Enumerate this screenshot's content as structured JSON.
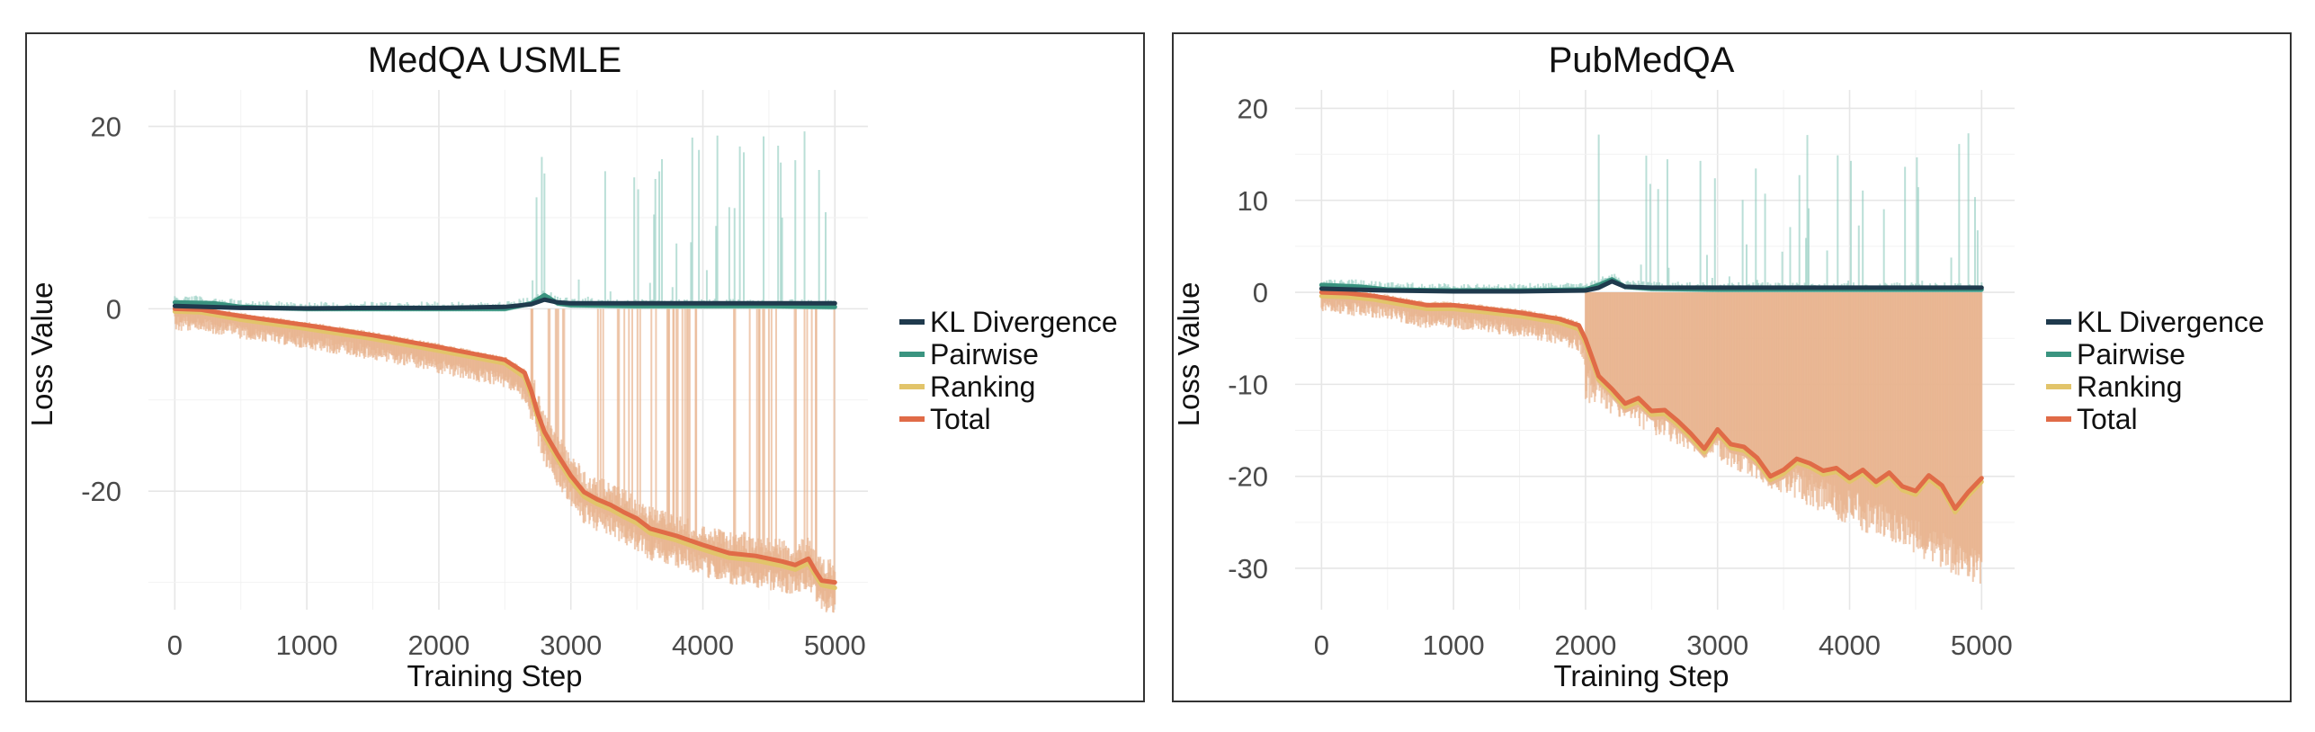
{
  "chart_data": [
    {
      "type": "line",
      "title": "MedQA USMLE",
      "xlabel": "Training Step",
      "ylabel": "Loss Value",
      "xlim": [
        -200,
        5250
      ],
      "ylim": [
        -33,
        24
      ],
      "xticks": [
        0,
        1000,
        2000,
        3000,
        4000,
        5000
      ],
      "xtick_labels": [
        "0",
        "1000",
        "2000",
        "3000",
        "4000",
        "5000"
      ],
      "yticks": [
        -20,
        0,
        20
      ],
      "ytick_labels": [
        "-20",
        "0",
        "20"
      ],
      "grid": true,
      "legend_position": "right",
      "legend": [
        "KL Divergence",
        "Pairwise",
        "Ranking",
        "Total"
      ],
      "series": [
        {
          "name": "KL Divergence",
          "color": "#1f3a4d",
          "x": [
            0,
            500,
            1000,
            1500,
            2000,
            2500,
            2700,
            2800,
            2900,
            3000,
            3500,
            4000,
            4500,
            5000
          ],
          "values": [
            0.3,
            0.1,
            0.05,
            0.1,
            0.1,
            0.2,
            0.5,
            1.0,
            0.7,
            0.6,
            0.6,
            0.6,
            0.6,
            0.6
          ]
        },
        {
          "name": "Pairwise",
          "color": "#3a9480",
          "x": [
            0,
            300,
            500,
            1000,
            1500,
            2000,
            2500,
            2700,
            2800,
            2900,
            3000,
            3500,
            4000,
            4500,
            5000
          ],
          "values": [
            0.7,
            0.6,
            0.2,
            0.0,
            0.0,
            0.0,
            0.0,
            0.6,
            1.5,
            0.6,
            0.4,
            0.3,
            0.3,
            0.3,
            0.2
          ]
        },
        {
          "name": "Ranking",
          "color": "#e2c46a",
          "x": [
            0,
            200,
            500,
            1000,
            1500,
            2000,
            2500,
            2650,
            2700,
            2750,
            2800,
            2900,
            3000,
            3100,
            3200,
            3300,
            3400,
            3500,
            3600,
            3800,
            4000,
            4200,
            4400,
            4600,
            4700,
            4800,
            4850,
            4900,
            5000
          ],
          "values": [
            -0.3,
            -0.4,
            -1.2,
            -2.2,
            -3.3,
            -4.6,
            -6.0,
            -7.5,
            -9.5,
            -12.0,
            -14.0,
            -16.5,
            -18.8,
            -20.6,
            -21.4,
            -22.0,
            -22.8,
            -23.5,
            -24.6,
            -25.4,
            -26.4,
            -27.3,
            -27.6,
            -28.2,
            -28.6,
            -27.9,
            -29.2,
            -30.3,
            -30.6
          ]
        },
        {
          "name": "Total",
          "color": "#e06b47",
          "x": [
            0,
            200,
            500,
            1000,
            1500,
            2000,
            2500,
            2650,
            2700,
            2750,
            2800,
            2900,
            3000,
            3100,
            3200,
            3300,
            3400,
            3500,
            3600,
            3800,
            4000,
            4200,
            4400,
            4600,
            4700,
            4800,
            4850,
            4900,
            5000
          ],
          "values": [
            0.0,
            -0.1,
            -0.8,
            -1.8,
            -2.9,
            -4.2,
            -5.6,
            -7.0,
            -9.0,
            -11.5,
            -13.5,
            -16.0,
            -18.3,
            -20.1,
            -20.9,
            -21.5,
            -22.3,
            -23.0,
            -24.1,
            -24.9,
            -25.9,
            -26.8,
            -27.1,
            -27.7,
            -28.1,
            -27.4,
            -28.7,
            -29.8,
            -30.0
          ]
        }
      ]
    },
    {
      "type": "line",
      "title": "PubMedQA",
      "xlabel": "Training Step",
      "ylabel": "Loss Value",
      "xlim": [
        -200,
        5250
      ],
      "ylim": [
        -34.5,
        22
      ],
      "xticks": [
        0,
        1000,
        2000,
        3000,
        4000,
        5000
      ],
      "xtick_labels": [
        "0",
        "1000",
        "2000",
        "3000",
        "4000",
        "5000"
      ],
      "yticks": [
        -30,
        -20,
        -10,
        0,
        10,
        20
      ],
      "ytick_labels": [
        "-30",
        "-20",
        "-10",
        "0",
        "10",
        "20"
      ],
      "grid": true,
      "legend_position": "right",
      "legend": [
        "KL Divergence",
        "Pairwise",
        "Ranking",
        "Total"
      ],
      "series": [
        {
          "name": "KL Divergence",
          "color": "#1f3a4d",
          "x": [
            0,
            500,
            1000,
            1500,
            2000,
            2100,
            2200,
            2300,
            2500,
            3000,
            3500,
            4000,
            4500,
            5000
          ],
          "values": [
            0.4,
            0.2,
            0.1,
            0.1,
            0.2,
            0.5,
            1.2,
            0.6,
            0.5,
            0.5,
            0.5,
            0.5,
            0.5,
            0.5
          ]
        },
        {
          "name": "Pairwise",
          "color": "#3a9480",
          "x": [
            0,
            300,
            500,
            1000,
            1500,
            2000,
            2100,
            2200,
            2300,
            2500,
            3000,
            3500,
            4000,
            4500,
            5000
          ],
          "values": [
            0.8,
            0.6,
            0.3,
            0.2,
            0.2,
            0.3,
            0.8,
            1.4,
            0.6,
            0.4,
            0.3,
            0.3,
            0.3,
            0.3,
            0.3
          ]
        },
        {
          "name": "Ranking",
          "color": "#e2c46a",
          "x": [
            0,
            200,
            400,
            600,
            800,
            1000,
            1200,
            1500,
            1800,
            1950,
            2000,
            2050,
            2100,
            2200,
            2300,
            2400,
            2500,
            2600,
            2700,
            2800,
            2900,
            3000,
            3100,
            3200,
            3300,
            3400,
            3500,
            3600,
            3700,
            3800,
            3900,
            4000,
            4100,
            4200,
            4300,
            4400,
            4500,
            4600,
            4700,
            4800,
            4900,
            5000
          ],
          "values": [
            -0.4,
            -0.5,
            -0.8,
            -1.3,
            -1.8,
            -1.8,
            -2.1,
            -2.6,
            -3.3,
            -4.0,
            -5.5,
            -7.5,
            -9.5,
            -10.9,
            -12.5,
            -11.9,
            -13.3,
            -13.2,
            -14.4,
            -15.8,
            -17.4,
            -15.3,
            -16.9,
            -17.2,
            -18.4,
            -20.4,
            -19.7,
            -18.5,
            -19.0,
            -19.8,
            -19.5,
            -20.6,
            -19.7,
            -21.0,
            -20.0,
            -21.5,
            -22.0,
            -20.3,
            -21.4,
            -23.9,
            -22.1,
            -20.6
          ]
        },
        {
          "name": "Total",
          "color": "#e06b47",
          "x": [
            0,
            200,
            400,
            600,
            800,
            1000,
            1200,
            1500,
            1800,
            1950,
            2000,
            2050,
            2100,
            2200,
            2300,
            2400,
            2500,
            2600,
            2700,
            2800,
            2900,
            3000,
            3100,
            3200,
            3300,
            3400,
            3500,
            3600,
            3700,
            3800,
            3900,
            4000,
            4100,
            4200,
            4300,
            4400,
            4500,
            4600,
            4700,
            4800,
            4900,
            5000
          ],
          "values": [
            0.0,
            -0.1,
            -0.4,
            -0.9,
            -1.4,
            -1.4,
            -1.7,
            -2.2,
            -2.9,
            -3.6,
            -5.1,
            -7.1,
            -9.1,
            -10.5,
            -12.1,
            -11.5,
            -12.9,
            -12.8,
            -14.0,
            -15.4,
            -17.0,
            -14.9,
            -16.5,
            -16.8,
            -18.0,
            -20.0,
            -19.3,
            -18.1,
            -18.6,
            -19.4,
            -19.1,
            -20.2,
            -19.3,
            -20.6,
            -19.6,
            -21.1,
            -21.6,
            -19.9,
            -21.0,
            -23.5,
            -21.7,
            -20.2
          ]
        }
      ]
    }
  ]
}
